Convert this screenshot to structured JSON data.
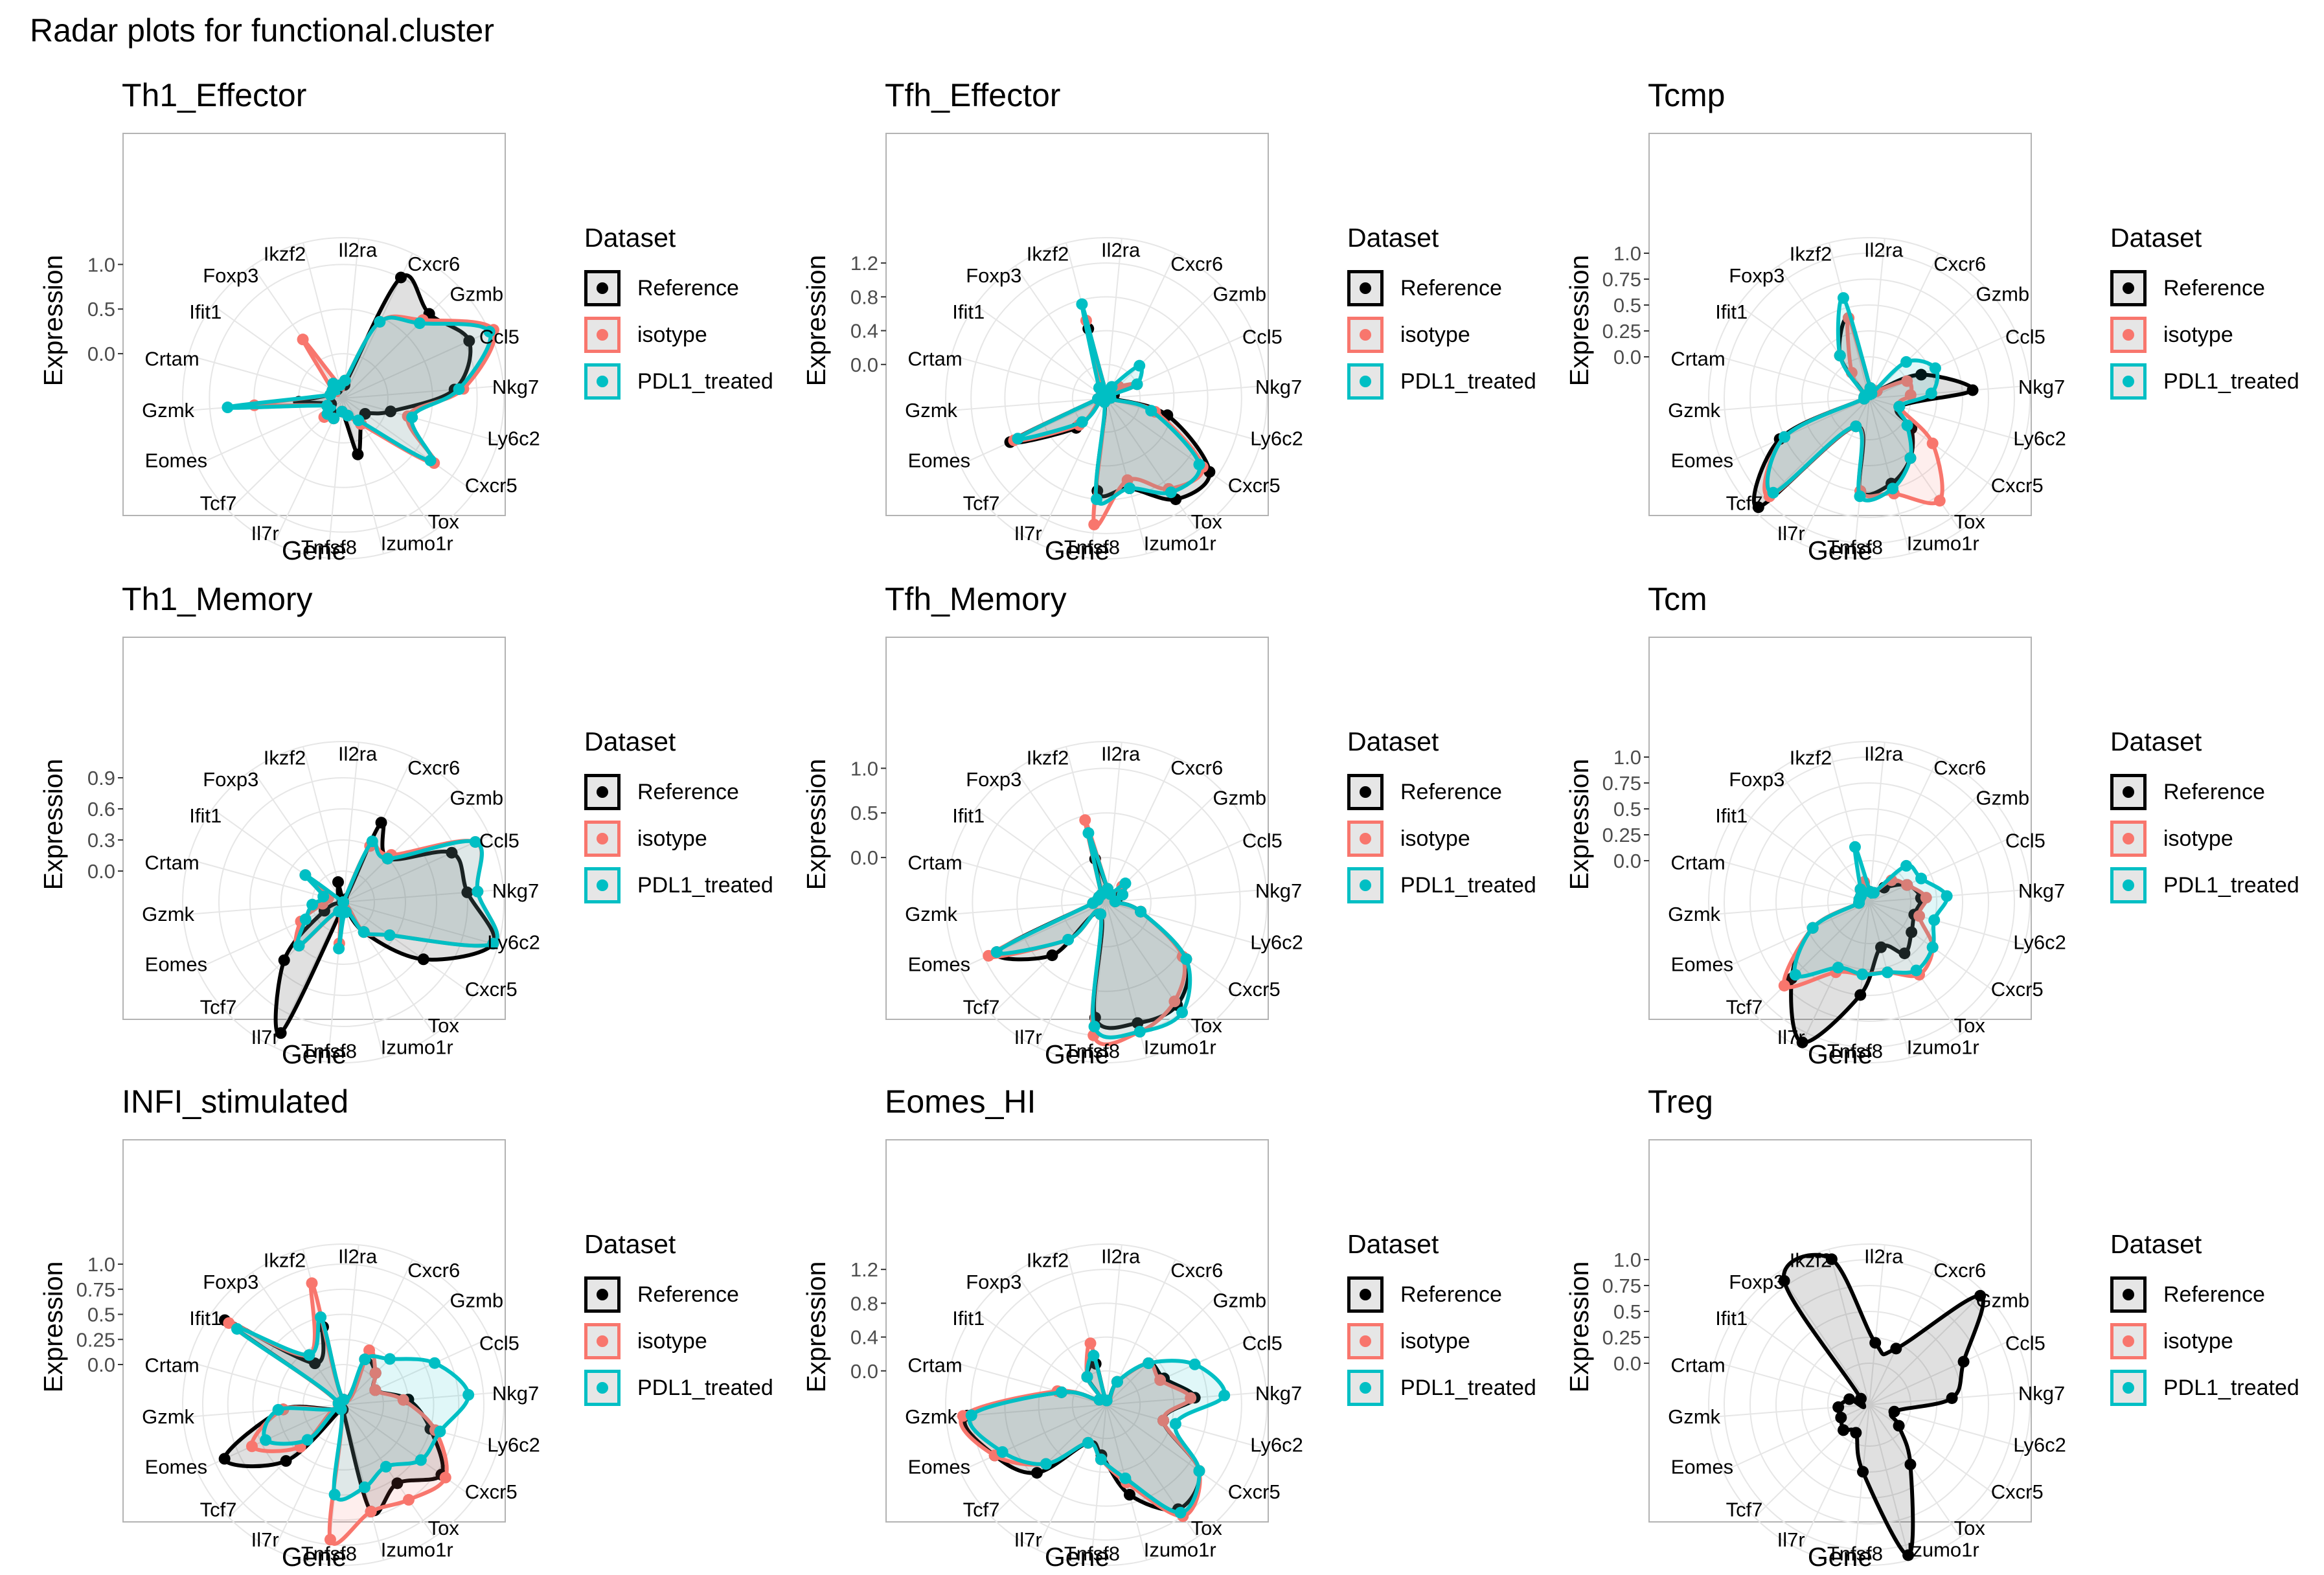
{
  "title": "Radar plots for functional.cluster",
  "legend_title": "Dataset",
  "colors": {
    "Reference": "#000000",
    "isotype": "#F8766D",
    "PDL1_treated": "#00BFC4"
  },
  "chart_data": [
    {
      "type": "radar",
      "title": "Th1_Effector",
      "xlabel": "Gene",
      "ylabel": "Expression",
      "categories": [
        "Il2ra",
        "Cxcr6",
        "Gzmb",
        "Ccl5",
        "Nkg7",
        "Ly6c2",
        "Cxcr5",
        "Tox",
        "Izumo1r",
        "Tnfsf8",
        "Il7r",
        "Tcf7",
        "Eomes",
        "Gzmk",
        "Crtam",
        "Ifit1",
        "Foxp3",
        "Ikzf2"
      ],
      "yticks": [
        0.0,
        0.5,
        1.0
      ],
      "ylim": [
        -0.5,
        1.3
      ],
      "series": [
        {
          "name": "Reference",
          "values": [
            -0.35,
            1.0,
            0.85,
            1.05,
            0.75,
            0.05,
            -0.2,
            -0.15,
            0.15,
            -0.35,
            -0.25,
            -0.3,
            -0.35,
            0.0,
            -0.35,
            -0.35,
            -0.35,
            -0.35
          ]
        },
        {
          "name": "isotype",
          "values": [
            -0.3,
            0.45,
            0.75,
            1.35,
            0.85,
            0.25,
            0.75,
            -0.15,
            -0.3,
            -0.35,
            -0.25,
            -0.2,
            -0.3,
            0.5,
            -0.35,
            -0.35,
            0.3,
            -0.35
          ]
        },
        {
          "name": "PDL1_treated",
          "values": [
            -0.3,
            0.45,
            0.7,
            1.3,
            0.8,
            0.3,
            0.7,
            -0.2,
            -0.3,
            -0.35,
            -0.25,
            -0.25,
            -0.3,
            0.8,
            -0.35,
            -0.35,
            -0.3,
            -0.35
          ]
        }
      ]
    },
    {
      "type": "radar",
      "title": "Tfh_Effector",
      "xlabel": "Gene",
      "ylabel": "Expression",
      "categories": [
        "Il2ra",
        "Cxcr6",
        "Gzmb",
        "Ccl5",
        "Nkg7",
        "Ly6c2",
        "Cxcr5",
        "Tox",
        "Izumo1r",
        "Tnfsf8",
        "Il7r",
        "Tcf7",
        "Eomes",
        "Gzmk",
        "Crtam",
        "Ifit1",
        "Foxp3",
        "Ikzf2"
      ],
      "yticks": [
        0.0,
        0.4,
        0.8,
        1.2
      ],
      "ylim": [
        -0.4,
        1.5
      ],
      "series": [
        {
          "name": "Reference",
          "values": [
            -0.35,
            -0.3,
            -0.2,
            -0.3,
            -0.35,
            0.35,
            1.1,
            1.05,
            0.7,
            0.7,
            -0.35,
            0.1,
            0.85,
            -0.3,
            -0.35,
            -0.35,
            -0.3,
            0.45
          ]
        },
        {
          "name": "isotype",
          "values": [
            -0.35,
            -0.3,
            -0.2,
            0.0,
            -0.35,
            0.2,
            1.0,
            0.9,
            0.6,
            1.1,
            -0.35,
            0.05,
            0.8,
            -0.3,
            -0.35,
            -0.35,
            -0.3,
            0.55
          ]
        },
        {
          "name": "PDL1_treated",
          "values": [
            -0.35,
            -0.25,
            0.15,
            0.0,
            -0.35,
            0.15,
            0.95,
            0.95,
            0.7,
            0.8,
            -0.35,
            0.0,
            0.75,
            -0.3,
            -0.35,
            -0.35,
            -0.25,
            0.75
          ]
        }
      ]
    },
    {
      "type": "radar",
      "title": "Tcmp",
      "xlabel": "Gene",
      "ylabel": "Expression",
      "categories": [
        "Il2ra",
        "Cxcr6",
        "Gzmb",
        "Ccl5",
        "Nkg7",
        "Ly6c2",
        "Cxcr5",
        "Tox",
        "Izumo1r",
        "Tnfsf8",
        "Il7r",
        "Tcf7",
        "Eomes",
        "Gzmk",
        "Crtam",
        "Ifit1",
        "Foxp3",
        "Ikzf2"
      ],
      "yticks": [
        0.0,
        0.25,
        0.5,
        0.75,
        1.0
      ],
      "ylim": [
        -0.4,
        1.15
      ],
      "series": [
        {
          "name": "Reference",
          "values": [
            -0.3,
            -0.35,
            -0.3,
            0.15,
            0.6,
            -0.1,
            0.1,
            0.3,
            0.45,
            0.5,
            -0.1,
            1.1,
            0.55,
            -0.35,
            -0.35,
            -0.35,
            0.1,
            0.4
          ]
        },
        {
          "name": "isotype",
          "values": [
            -0.3,
            -0.35,
            -0.3,
            0.0,
            0.0,
            -0.1,
            0.35,
            0.8,
            0.55,
            0.5,
            -0.1,
            0.95,
            0.5,
            -0.35,
            -0.35,
            -0.35,
            -0.1,
            0.4
          ]
        },
        {
          "name": "PDL1_treated",
          "values": [
            -0.3,
            -0.35,
            0.1,
            0.3,
            0.2,
            -0.1,
            0.05,
            0.3,
            0.5,
            0.55,
            -0.1,
            0.9,
            0.5,
            -0.35,
            -0.35,
            -0.35,
            0.1,
            0.6
          ]
        }
      ]
    },
    {
      "type": "radar",
      "title": "Th1_Memory",
      "xlabel": "Gene",
      "ylabel": "Expression",
      "categories": [
        "Il2ra",
        "Cxcr6",
        "Gzmb",
        "Ccl5",
        "Nkg7",
        "Ly6c2",
        "Cxcr5",
        "Tox",
        "Izumo1r",
        "Tnfsf8",
        "Il7r",
        "Tcf7",
        "Eomes",
        "Gzmk",
        "Crtam",
        "Ifit1",
        "Foxp3",
        "Ikzf2"
      ],
      "yticks": [
        0.0,
        0.3,
        0.6,
        0.9
      ],
      "ylim": [
        -0.3,
        1.25
      ],
      "series": [
        {
          "name": "Reference",
          "values": [
            -0.3,
            0.55,
            0.3,
            0.85,
            0.9,
            1.2,
            0.65,
            0.05,
            -0.3,
            -0.25,
            1.1,
            0.5,
            -0.1,
            -0.3,
            -0.3,
            -0.3,
            -0.3,
            -0.1
          ]
        },
        {
          "name": "isotype",
          "values": [
            -0.3,
            0.3,
            0.35,
            1.1,
            1.0,
            1.2,
            0.25,
            0.05,
            -0.3,
            0.1,
            -0.2,
            0.3,
            0.15,
            -0.1,
            -0.15,
            0.15,
            -0.3,
            -0.3
          ]
        },
        {
          "name": "PDL1_treated",
          "values": [
            -0.3,
            0.35,
            0.3,
            1.1,
            1.0,
            1.2,
            0.25,
            0.05,
            -0.2,
            0.15,
            -0.2,
            0.3,
            0.1,
            0.0,
            -0.1,
            0.15,
            -0.3,
            -0.3
          ]
        }
      ]
    },
    {
      "type": "radar",
      "title": "Tfh_Memory",
      "xlabel": "Gene",
      "ylabel": "Expression",
      "categories": [
        "Il2ra",
        "Cxcr6",
        "Gzmb",
        "Ccl5",
        "Nkg7",
        "Ly6c2",
        "Cxcr5",
        "Tox",
        "Izumo1r",
        "Tnfsf8",
        "Il7r",
        "Tcf7",
        "Eomes",
        "Gzmk",
        "Crtam",
        "Ifit1",
        "Foxp3",
        "Ikzf2"
      ],
      "yticks": [
        0.0,
        0.5,
        1.0
      ],
      "ylim": [
        -0.5,
        1.3
      ],
      "series": [
        {
          "name": "Reference",
          "values": [
            -0.35,
            -0.4,
            -0.25,
            -0.35,
            -0.4,
            -0.1,
            0.6,
            0.9,
            0.9,
            0.8,
            -0.35,
            0.35,
            0.85,
            -0.35,
            -0.4,
            -0.4,
            -0.4,
            0.0
          ]
        },
        {
          "name": "isotype",
          "values": [
            -0.35,
            -0.4,
            -0.25,
            -0.3,
            -0.4,
            -0.1,
            0.55,
            0.85,
            1.0,
            1.0,
            -0.35,
            0.1,
            0.95,
            -0.35,
            -0.4,
            -0.4,
            -0.4,
            0.45
          ]
        },
        {
          "name": "PDL1_treated",
          "values": [
            -0.35,
            -0.4,
            -0.2,
            -0.3,
            -0.4,
            -0.1,
            0.6,
            1.0,
            1.0,
            0.9,
            -0.35,
            0.1,
            0.85,
            -0.35,
            -0.4,
            -0.4,
            -0.4,
            0.3
          ]
        }
      ]
    },
    {
      "type": "radar",
      "title": "Tcm",
      "xlabel": "Gene",
      "ylabel": "Expression",
      "categories": [
        "Il2ra",
        "Cxcr6",
        "Gzmb",
        "Ccl5",
        "Nkg7",
        "Ly6c2",
        "Cxcr5",
        "Tox",
        "Izumo1r",
        "Tnfsf8",
        "Il7r",
        "Tcf7",
        "Eomes",
        "Gzmk",
        "Crtam",
        "Ifit1",
        "Foxp3",
        "Ikzf2"
      ],
      "yticks": [
        0.0,
        0.25,
        0.5,
        0.75,
        1.0
      ],
      "ylim": [
        -0.4,
        1.15
      ],
      "series": [
        {
          "name": "Reference",
          "values": [
            -0.3,
            -0.3,
            -0.2,
            0.0,
            0.1,
            0.05,
            0.1,
            0.2,
            0.05,
            0.5,
            1.1,
            0.65,
            0.2,
            -0.3,
            -0.3,
            -0.3,
            -0.25,
            -0.2
          ]
        },
        {
          "name": "isotype",
          "values": [
            -0.3,
            -0.3,
            -0.1,
            0.0,
            0.15,
            0.1,
            0.35,
            0.45,
            0.3,
            0.3,
            0.35,
            0.75,
            0.2,
            -0.3,
            -0.3,
            -0.3,
            -0.25,
            -0.2
          ]
        },
        {
          "name": "PDL1_treated",
          "values": [
            -0.3,
            -0.3,
            0.1,
            0.15,
            0.35,
            0.25,
            0.35,
            0.4,
            0.3,
            0.3,
            0.3,
            0.6,
            0.2,
            -0.3,
            -0.3,
            -0.3,
            -0.25,
            0.15
          ]
        }
      ]
    },
    {
      "type": "radar",
      "title": "INFI_stimulated",
      "xlabel": "Gene",
      "ylabel": "Expression",
      "categories": [
        "Il2ra",
        "Cxcr6",
        "Gzmb",
        "Ccl5",
        "Nkg7",
        "Ly6c2",
        "Cxcr5",
        "Tox",
        "Izumo1r",
        "Tnfsf8",
        "Il7r",
        "Tcf7",
        "Eomes",
        "Gzmk",
        "Crtam",
        "Ifit1",
        "Foxp3",
        "Ikzf2"
      ],
      "yticks": [
        0.0,
        0.25,
        0.5,
        0.75,
        1.0
      ],
      "ylim": [
        -0.4,
        1.2
      ],
      "series": [
        {
          "name": "Reference",
          "values": [
            -0.35,
            0.1,
            0.05,
            -0.05,
            0.25,
            0.5,
            0.8,
            0.55,
            0.7,
            -0.35,
            -0.35,
            0.4,
            0.9,
            0.2,
            -0.35,
            1.05,
            0.1,
            0.4
          ]
        },
        {
          "name": "isotype",
          "values": [
            -0.35,
            0.2,
            0.05,
            -0.05,
            0.2,
            0.55,
            0.85,
            0.75,
            0.7,
            0.95,
            -0.35,
            0.2,
            0.6,
            0.2,
            -0.35,
            1.0,
            0.2,
            0.85
          ]
        },
        {
          "name": "PDL1_treated",
          "values": [
            -0.35,
            0.1,
            0.25,
            0.6,
            0.85,
            0.6,
            0.55,
            0.35,
            0.45,
            0.5,
            -0.35,
            0.1,
            0.45,
            0.25,
            -0.35,
            0.9,
            0.2,
            0.5
          ]
        }
      ]
    },
    {
      "type": "radar",
      "title": "Eomes_HI",
      "xlabel": "Gene",
      "ylabel": "Expression",
      "categories": [
        "Il2ra",
        "Cxcr6",
        "Gzmb",
        "Ccl5",
        "Nkg7",
        "Ly6c2",
        "Cxcr5",
        "Tox",
        "Izumo1r",
        "Tnfsf8",
        "Il7r",
        "Tcf7",
        "Eomes",
        "Gzmk",
        "Crtam",
        "Ifit1",
        "Foxp3",
        "Ikzf2"
      ],
      "yticks": [
        0.0,
        0.4,
        0.8,
        1.2
      ],
      "ylim": [
        -0.4,
        1.5
      ],
      "series": [
        {
          "name": "Reference",
          "values": [
            -0.35,
            -0.1,
            0.3,
            0.35,
            0.65,
            0.3,
            0.95,
            1.1,
            0.7,
            0.2,
            0.1,
            0.75,
            1.05,
            1.25,
            0.15,
            -0.3,
            0.0,
            0.1
          ]
        },
        {
          "name": "isotype",
          "values": [
            -0.35,
            -0.1,
            0.3,
            0.3,
            0.6,
            0.3,
            0.95,
            1.2,
            0.55,
            0.25,
            0.1,
            0.6,
            1.05,
            1.3,
            0.2,
            -0.3,
            0.0,
            0.35
          ]
        },
        {
          "name": "PDL1_treated",
          "values": [
            -0.35,
            -0.1,
            0.3,
            0.75,
            1.0,
            0.45,
            0.95,
            1.15,
            0.5,
            0.25,
            0.1,
            0.6,
            0.95,
            1.2,
            0.15,
            -0.3,
            0.0,
            0.2
          ]
        }
      ]
    },
    {
      "type": "radar",
      "title": "Treg",
      "xlabel": "Gene",
      "ylabel": "Expression",
      "categories": [
        "Il2ra",
        "Cxcr6",
        "Gzmb",
        "Ccl5",
        "Nkg7",
        "Ly6c2",
        "Cxcr5",
        "Tox",
        "Izumo1r",
        "Tnfsf8",
        "Il7r",
        "Tcf7",
        "Eomes",
        "Gzmk",
        "Crtam",
        "Ifit1",
        "Foxp3",
        "Ikzf2"
      ],
      "yticks": [
        0.0,
        0.25,
        0.5,
        0.75,
        1.0
      ],
      "ylim": [
        -0.4,
        1.15
      ],
      "series": [
        {
          "name": "Reference",
          "values": [
            0.2,
            0.2,
            1.1,
            0.6,
            0.4,
            -0.15,
            -0.05,
            0.3,
            1.1,
            0.25,
            -0.1,
            -0.05,
            -0.1,
            -0.1,
            -0.2,
            -0.3,
            1.05,
            1.05
          ]
        }
      ]
    }
  ]
}
